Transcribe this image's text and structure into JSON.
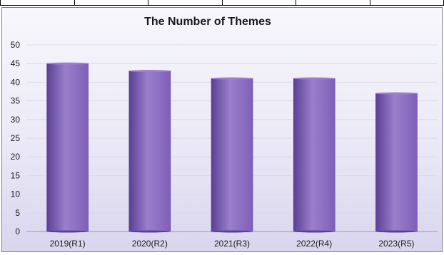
{
  "chart_data": {
    "type": "bar",
    "title": "The Number of Themes",
    "categories": [
      "2019(R1)",
      "2020(R2)",
      "2021(R3)",
      "2022(R4)",
      "2023(R5)"
    ],
    "values": [
      45,
      43,
      41,
      41,
      37
    ],
    "yticks": [
      "0",
      "5",
      "10",
      "15",
      "20",
      "25",
      "30",
      "35",
      "40",
      "45",
      "50"
    ],
    "ylim": [
      0,
      50
    ],
    "xlabel": "",
    "ylabel": "",
    "grid": true,
    "legend": "none",
    "colors": {
      "bar": "#7f5fb8",
      "bar_light": "#9a7fcc",
      "bar_dark": "#5b3f95",
      "grid": "#dcd8ec"
    }
  }
}
